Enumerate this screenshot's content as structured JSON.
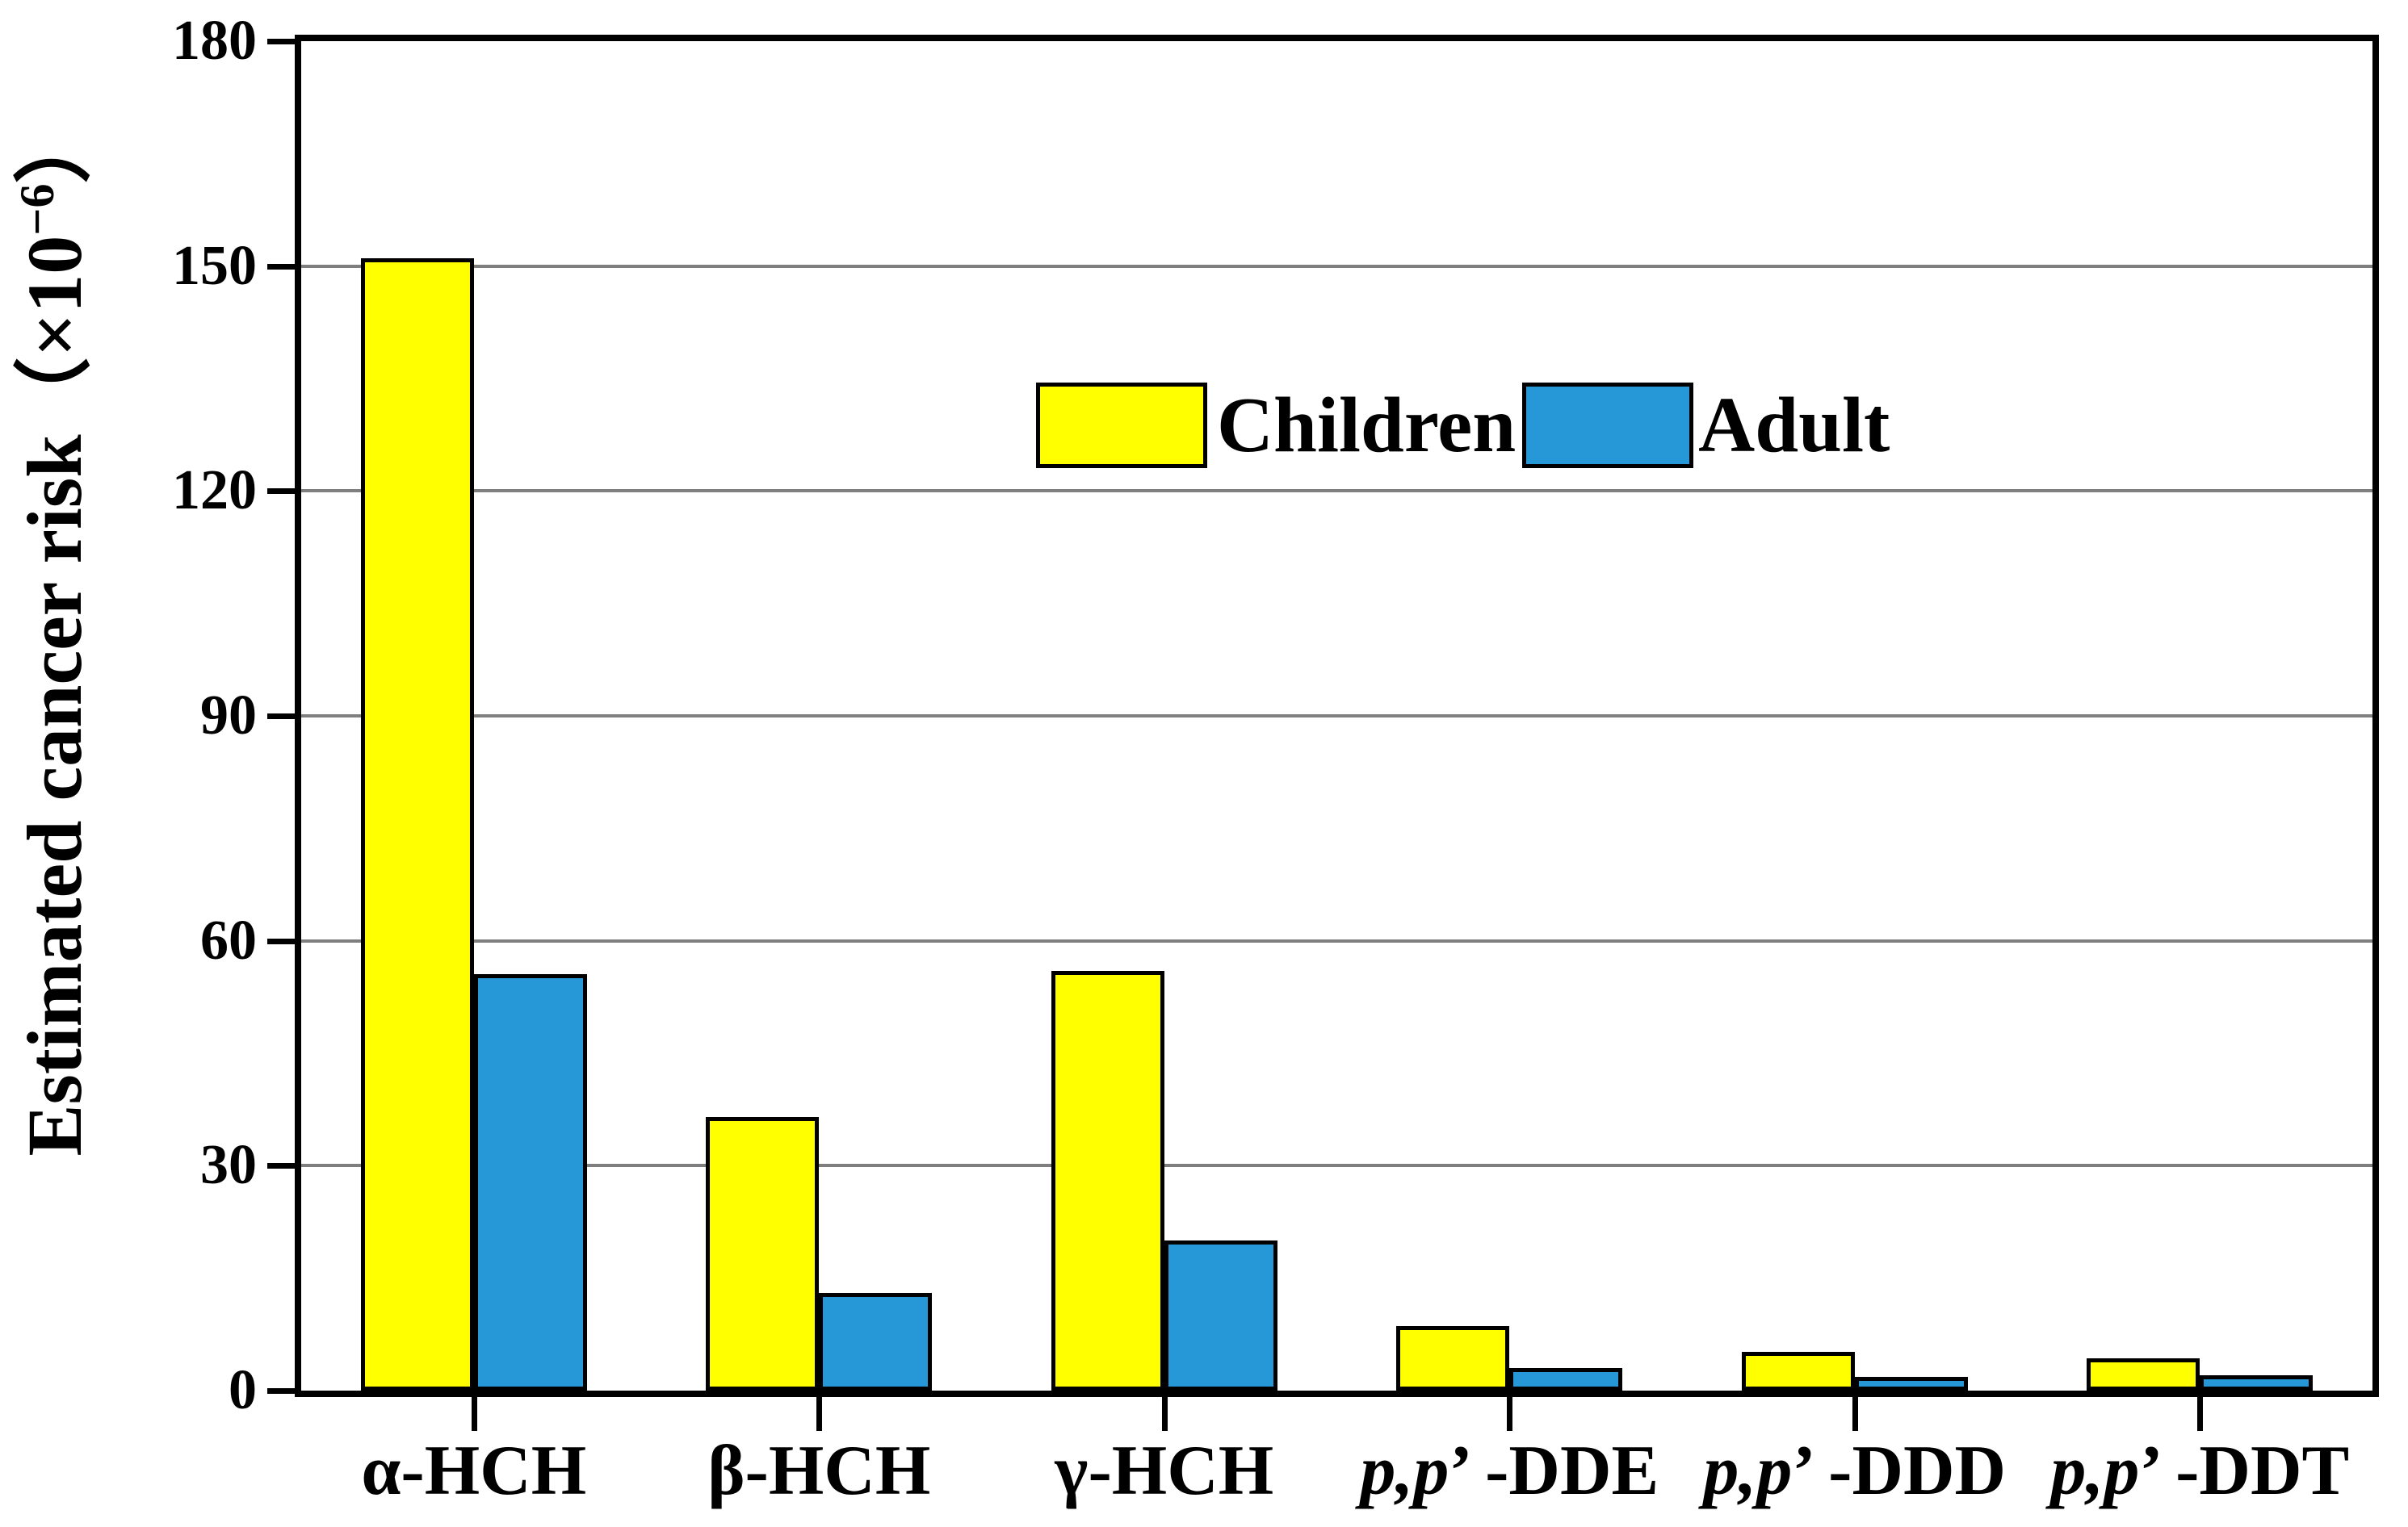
{
  "chart_data": {
    "type": "bar",
    "title": "",
    "categories": [
      "α-HCH",
      "β-HCH",
      "γ-HCH",
      "p,p’ -DDE",
      "p,p’ -DDD",
      "p,p’ -DDT"
    ],
    "category_label_parts": [
      {
        "italic": "",
        "text": "α-HCH"
      },
      {
        "italic": "",
        "text": "β-HCH"
      },
      {
        "italic": "",
        "text": "γ-HCH"
      },
      {
        "italic": "p,p",
        "text": "’ -DDE"
      },
      {
        "italic": "p,p",
        "text": "’ -DDD"
      },
      {
        "italic": "p,p",
        "text": "’ -DDT"
      }
    ],
    "series": [
      {
        "name": "Children",
        "color": "#FFFF00",
        "values": [
          151,
          36.5,
          56,
          8.6,
          5.2,
          4.3
        ]
      },
      {
        "name": "Adult",
        "color": "#2698D8",
        "values": [
          55.5,
          13,
          20,
          3,
          1.8,
          2
        ]
      }
    ],
    "xlabel": "",
    "ylabel": {
      "text": "Estimated cancer risk",
      "unit_prefix": "（×10",
      "unit_exponent": "−6",
      "unit_suffix": "）"
    },
    "ylim": [
      0,
      180
    ],
    "yticks": [
      0,
      30,
      60,
      90,
      120,
      150,
      180
    ],
    "gridline_values": [
      30,
      60,
      90,
      120,
      150
    ],
    "grid": "horizontal",
    "legend_position": "upper-center",
    "colors": {
      "grid": "#7F7F7F",
      "axis": "#000000",
      "background": "#FFFFFF",
      "bar_border": "#000000"
    }
  }
}
